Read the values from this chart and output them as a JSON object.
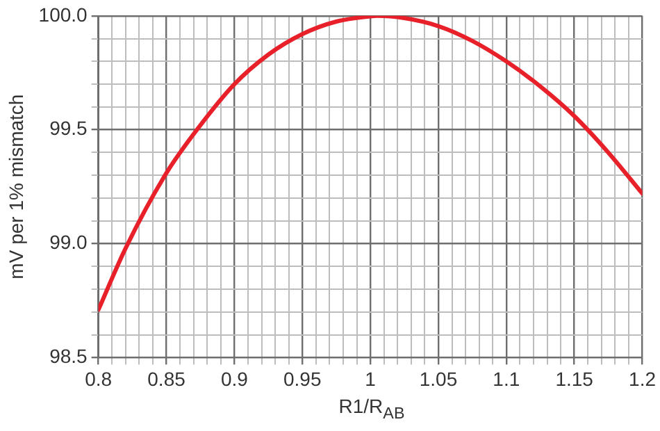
{
  "chart_data": {
    "type": "line",
    "xlabel": "R1/R$_{AB}$",
    "ylabel": "mV per 1% mismatch",
    "x": [
      0.8,
      0.82,
      0.85,
      0.875,
      0.9,
      0.925,
      0.95,
      0.975,
      1.0,
      1.005,
      1.025,
      1.05,
      1.075,
      1.1,
      1.125,
      1.15,
      1.175,
      1.2
    ],
    "series": [
      {
        "color": "#e8202a",
        "values": [
          98.71,
          98.98,
          99.31,
          99.52,
          99.7,
          99.83,
          99.92,
          99.975,
          99.998,
          100.0,
          99.99,
          99.955,
          99.89,
          99.8,
          99.69,
          99.56,
          99.4,
          99.22
        ]
      }
    ],
    "xlim": [
      0.8,
      1.2
    ],
    "xticks": [
      0.8,
      {
        "value": 0.81,
        "label": null
      },
      {
        "value": 0.82,
        "label": null
      },
      {
        "value": 0.83,
        "label": null
      },
      {
        "value": 0.84,
        "label": null
      },
      0.85,
      {
        "value": 0.86,
        "label": null
      },
      {
        "value": 0.87,
        "label": null
      },
      {
        "value": 0.88,
        "label": null
      },
      {
        "value": 0.89,
        "label": null
      },
      0.9,
      {
        "value": 0.91,
        "label": null
      },
      {
        "value": 0.92,
        "label": null
      },
      {
        "value": 0.93,
        "label": null
      },
      {
        "value": 0.94,
        "label": null
      },
      0.95,
      {
        "value": 0.96,
        "label": null
      },
      {
        "value": 0.97,
        "label": null
      },
      {
        "value": 0.98,
        "label": null
      },
      {
        "value": 0.99,
        "label": null
      },
      1,
      {
        "value": 1.01,
        "label": null
      },
      {
        "value": 1.02,
        "label": null
      },
      {
        "value": 1.03,
        "label": null
      },
      {
        "value": 1.04,
        "label": null
      },
      1.05,
      {
        "value": 1.06,
        "label": null
      },
      {
        "value": 1.07,
        "label": null
      },
      {
        "value": 1.08,
        "label": null
      },
      {
        "value": 1.09,
        "label": null
      },
      1.1,
      {
        "value": 1.11,
        "label": null
      },
      {
        "value": 1.12,
        "label": null
      },
      {
        "value": 1.13,
        "label": null
      },
      {
        "value": 1.14,
        "label": null
      },
      1.15,
      {
        "value": 1.16,
        "label": null
      },
      {
        "value": 1.17,
        "label": null
      },
      {
        "value": 1.18,
        "label": null
      },
      {
        "value": 1.19,
        "label": null
      },
      1.2
    ],
    "ylim": [
      98.5,
      100.0
    ],
    "yticks": [
      98.5,
      {
        "value": 98.6,
        "label": null
      },
      {
        "value": 98.7,
        "label": null
      },
      {
        "value": 98.8,
        "label": null
      },
      {
        "value": 98.9,
        "label": null
      },
      {
        "value": 99.0,
        "label": "99.0"
      },
      {
        "value": 99.1,
        "label": null
      },
      {
        "value": 99.2,
        "label": null
      },
      {
        "value": 99.3,
        "label": null
      },
      {
        "value": 99.4,
        "label": null
      },
      99.5,
      {
        "value": 99.6,
        "label": null
      },
      {
        "value": 99.7,
        "label": null
      },
      {
        "value": 99.8,
        "label": null
      },
      {
        "value": 99.9,
        "label": null
      },
      {
        "value": 100.0,
        "label": "100.0"
      }
    ],
    "grid": true,
    "legend": false,
    "marker": "none",
    "line_style": "solid"
  }
}
